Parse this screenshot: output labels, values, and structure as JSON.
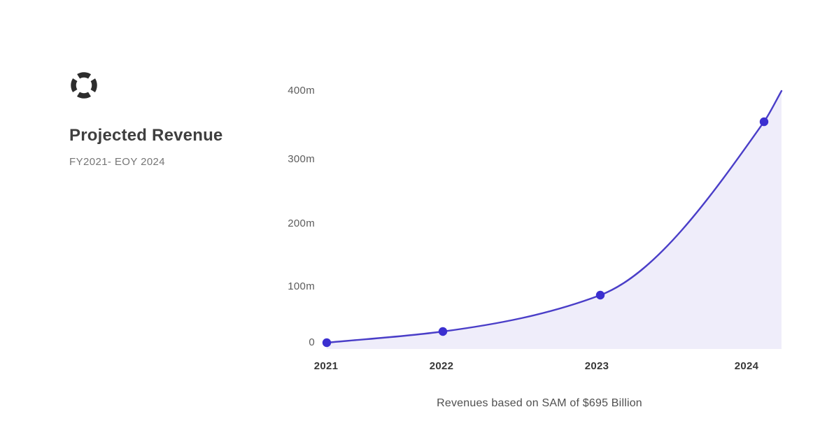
{
  "header": {
    "title": "Projected Revenue",
    "subtitle": "FY2021- EOY 2024",
    "logo_icon": "lifebuoy-icon",
    "logo_color": "#2d2d2d"
  },
  "chart_data": {
    "type": "area",
    "title": "Projected Revenue",
    "subtitle": "FY2021- EOY 2024",
    "categories": [
      "2021",
      "2022",
      "2023",
      "2024"
    ],
    "series": [
      {
        "name": "Projected Revenue",
        "values": [
          0,
          20,
          85,
          355
        ]
      }
    ],
    "values": [
      0,
      20,
      85,
      355
    ],
    "curve_end_value": 400,
    "unit": "m",
    "ylim": [
      0,
      400
    ],
    "ytick_labels": [
      "400m",
      "300m",
      "200m",
      "100m",
      "0"
    ],
    "xtick_labels": [
      "2021",
      "2022",
      "2023",
      "2024"
    ],
    "grid": false,
    "legend": false,
    "line_color": "#4a3ec8",
    "point_color": "#3b2fd0",
    "fill_color": "#efedfa",
    "caption": "Revenues based on SAM of $695 Billion"
  }
}
